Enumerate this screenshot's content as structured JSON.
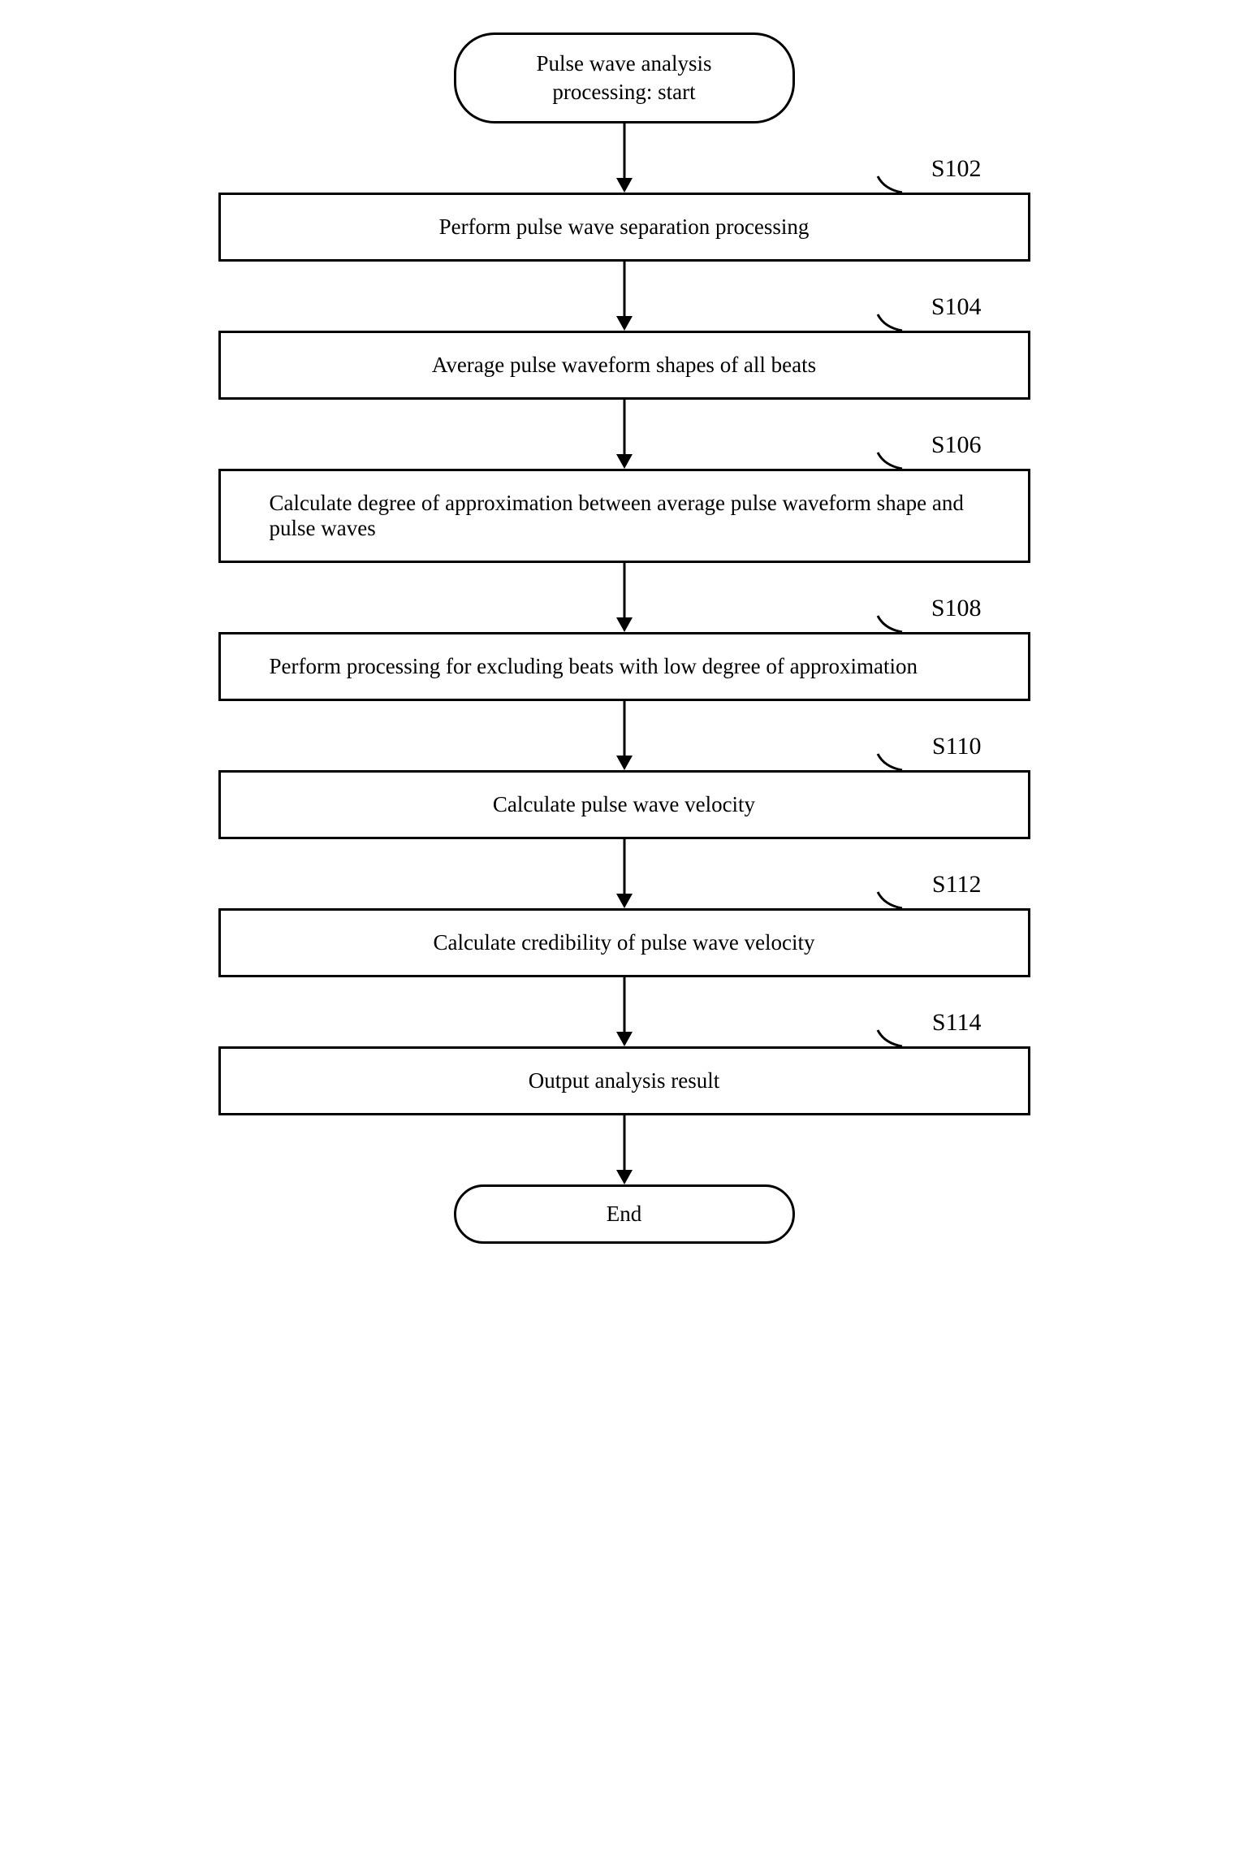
{
  "flow": {
    "start": "Pulse wave analysis\nprocessing: start",
    "end": "End",
    "steps": [
      {
        "id": "S102",
        "text": "Perform pulse wave separation processing",
        "align": "center"
      },
      {
        "id": "S104",
        "text": "Average pulse waveform shapes of all beats",
        "align": "center"
      },
      {
        "id": "S106",
        "text": "Calculate degree of approximation between average pulse waveform shape and pulse waves",
        "align": "left"
      },
      {
        "id": "S108",
        "text": "Perform processing for excluding beats with low degree of approximation",
        "align": "left"
      },
      {
        "id": "S110",
        "text": "Calculate pulse wave velocity",
        "align": "center"
      },
      {
        "id": "S112",
        "text": "Calculate credibility of pulse wave velocity",
        "align": "center"
      },
      {
        "id": "S114",
        "text": "Output analysis result",
        "align": "center"
      }
    ],
    "arrow_length": 85,
    "arrow_stroke": "#000000",
    "arrow_width": 3,
    "label_fontsize": 30,
    "text_fontsize": 27,
    "border_color": "#000000",
    "background": "#ffffff"
  }
}
